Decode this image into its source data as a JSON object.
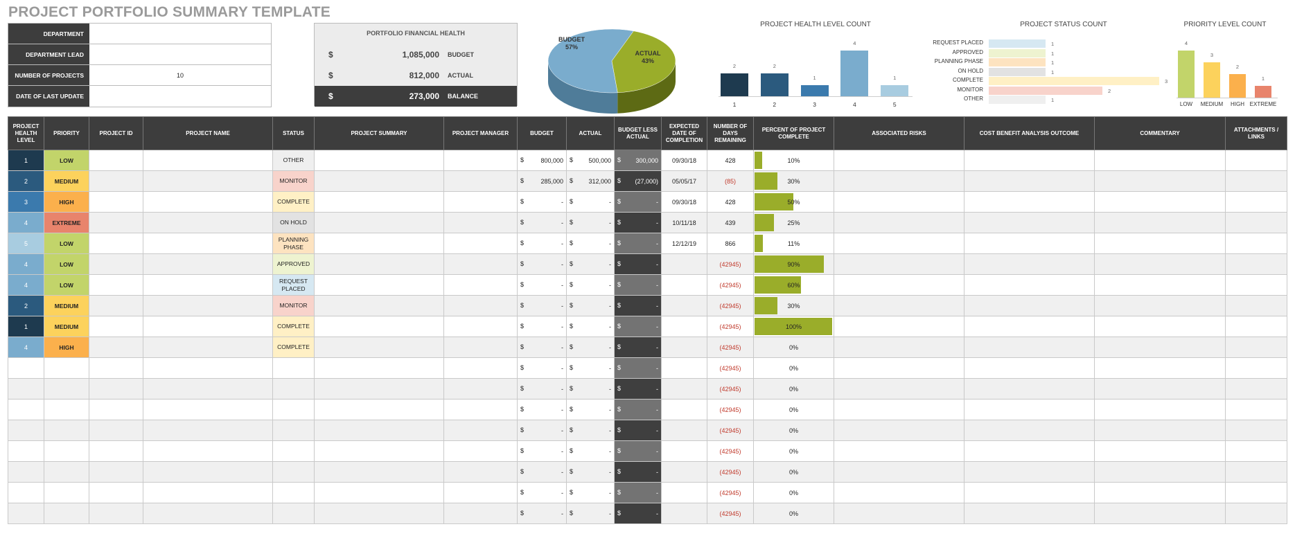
{
  "title": "PROJECT PORTFOLIO SUMMARY TEMPLATE",
  "info": [
    {
      "label": "DEPARTMENT",
      "value": ""
    },
    {
      "label": "DEPARTMENT LEAD",
      "value": ""
    },
    {
      "label": "NUMBER OF PROJECTS",
      "value": "10"
    },
    {
      "label": "DATE OF LAST UPDATE",
      "value": ""
    }
  ],
  "financial": {
    "title": "PORTFOLIO FINANCIAL HEALTH",
    "currency": "$",
    "rows": [
      {
        "value": "1,085,000",
        "label": "BUDGET"
      },
      {
        "value": "812,000",
        "label": "ACTUAL"
      },
      {
        "value": "273,000",
        "label": "BALANCE"
      }
    ]
  },
  "chart_data": [
    {
      "type": "pie",
      "slices": [
        {
          "label": "BUDGET",
          "value": 57,
          "text": "57%",
          "color": "#7aaccd"
        },
        {
          "label": "ACTUAL",
          "value": 43,
          "text": "43%",
          "color": "#9aad2a"
        }
      ]
    },
    {
      "type": "bar",
      "title": "PROJECT HEALTH LEVEL COUNT",
      "categories": [
        "1",
        "2",
        "3",
        "4",
        "5"
      ],
      "values": [
        2,
        2,
        1,
        4,
        1
      ],
      "colors": [
        "#1e3a4f",
        "#2b5a7e",
        "#3b7aad",
        "#7aaccd",
        "#a8cce0"
      ]
    },
    {
      "type": "bar",
      "orientation": "horizontal",
      "title": "PROJECT STATUS COUNT",
      "categories": [
        "REQUEST PLACED",
        "APPROVED",
        "PLANNING PHASE",
        "ON HOLD",
        "COMPLETE",
        "MONITOR",
        "OTHER"
      ],
      "values": [
        1,
        1,
        1,
        1,
        3,
        2,
        1
      ],
      "colors": [
        "#d6e8f2",
        "#eef3d0",
        "#fde3c0",
        "#e2e2e2",
        "#fff0c5",
        "#f8d3cb",
        "#efefef"
      ]
    },
    {
      "type": "bar",
      "title": "PRIORITY LEVEL COUNT",
      "categories": [
        "LOW",
        "MEDIUM",
        "HIGH",
        "EXTREME"
      ],
      "values": [
        4,
        3,
        2,
        1
      ],
      "colors": [
        "#c2d46a",
        "#fcd25c",
        "#fbb04c",
        "#e8846c"
      ]
    }
  ],
  "colors": {
    "health": {
      "1": "#1e3a4f",
      "2": "#2b5a7e",
      "3": "#3b7aad",
      "4": "#7aaccd",
      "5": "#a8cce0"
    },
    "priority": {
      "LOW": "#c2d46a",
      "MEDIUM": "#fcd25c",
      "HIGH": "#fbb04c",
      "EXTREME": "#e8846c"
    },
    "status": {
      "OTHER": "#efefef",
      "MONITOR": "#f8d3cb",
      "COMPLETE": "#fff0c5",
      "ON HOLD": "#e2e2e2",
      "PLANNING PHASE": "#fde3c0",
      "APPROVED": "#eef3d0",
      "REQUEST PLACED": "#d6e8f2"
    }
  },
  "table": {
    "headers": [
      "PROJECT HEALTH LEVEL",
      "PRIORITY",
      "PROJECT ID",
      "PROJECT NAME",
      "STATUS",
      "PROJECT SUMMARY",
      "PROJECT MANAGER",
      "BUDGET",
      "ACTUAL",
      "BUDGET LESS ACTUAL",
      "EXPECTED DATE OF COMPLETION",
      "NUMBER OF DAYS REMAINING",
      "PERCENT OF PROJECT COMPLETE",
      "ASSOCIATED RISKS",
      "COST BENEFIT ANALYSIS OUTCOME",
      "COMMENTARY",
      "ATTACHMENTS / LINKS"
    ],
    "rows": [
      {
        "health": "1",
        "priority": "LOW",
        "status": "OTHER",
        "budget": "800,000",
        "actual": "500,000",
        "diff": "300,000",
        "date": "09/30/18",
        "days": "428",
        "pct": 10
      },
      {
        "health": "2",
        "priority": "MEDIUM",
        "status": "MONITOR",
        "budget": "285,000",
        "actual": "312,000",
        "diff": "(27,000)",
        "date": "05/05/17",
        "days": "(85)",
        "pct": 30
      },
      {
        "health": "3",
        "priority": "HIGH",
        "status": "COMPLETE",
        "budget": "-",
        "actual": "-",
        "diff": "-",
        "date": "09/30/18",
        "days": "428",
        "pct": 50
      },
      {
        "health": "4",
        "priority": "EXTREME",
        "status": "ON HOLD",
        "budget": "-",
        "actual": "-",
        "diff": "-",
        "date": "10/11/18",
        "days": "439",
        "pct": 25
      },
      {
        "health": "5",
        "priority": "LOW",
        "status": "PLANNING PHASE",
        "budget": "-",
        "actual": "-",
        "diff": "-",
        "date": "12/12/19",
        "days": "866",
        "pct": 11
      },
      {
        "health": "4",
        "priority": "LOW",
        "status": "APPROVED",
        "budget": "-",
        "actual": "-",
        "diff": "-",
        "date": "",
        "days": "(42945)",
        "pct": 90
      },
      {
        "health": "4",
        "priority": "LOW",
        "status": "REQUEST PLACED",
        "budget": "-",
        "actual": "-",
        "diff": "-",
        "date": "",
        "days": "(42945)",
        "pct": 60
      },
      {
        "health": "2",
        "priority": "MEDIUM",
        "status": "MONITOR",
        "budget": "-",
        "actual": "-",
        "diff": "-",
        "date": "",
        "days": "(42945)",
        "pct": 30
      },
      {
        "health": "1",
        "priority": "MEDIUM",
        "status": "COMPLETE",
        "budget": "-",
        "actual": "-",
        "diff": "-",
        "date": "",
        "days": "(42945)",
        "pct": 100
      },
      {
        "health": "4",
        "priority": "HIGH",
        "status": "COMPLETE",
        "budget": "-",
        "actual": "-",
        "diff": "-",
        "date": "",
        "days": "(42945)",
        "pct": 0
      },
      {
        "health": "",
        "priority": "",
        "status": "",
        "budget": "-",
        "actual": "-",
        "diff": "-",
        "date": "",
        "days": "(42945)",
        "pct": 0
      },
      {
        "health": "",
        "priority": "",
        "status": "",
        "budget": "-",
        "actual": "-",
        "diff": "-",
        "date": "",
        "days": "(42945)",
        "pct": 0
      },
      {
        "health": "",
        "priority": "",
        "status": "",
        "budget": "-",
        "actual": "-",
        "diff": "-",
        "date": "",
        "days": "(42945)",
        "pct": 0
      },
      {
        "health": "",
        "priority": "",
        "status": "",
        "budget": "-",
        "actual": "-",
        "diff": "-",
        "date": "",
        "days": "(42945)",
        "pct": 0
      },
      {
        "health": "",
        "priority": "",
        "status": "",
        "budget": "-",
        "actual": "-",
        "diff": "-",
        "date": "",
        "days": "(42945)",
        "pct": 0
      },
      {
        "health": "",
        "priority": "",
        "status": "",
        "budget": "-",
        "actual": "-",
        "diff": "-",
        "date": "",
        "days": "(42945)",
        "pct": 0
      },
      {
        "health": "",
        "priority": "",
        "status": "",
        "budget": "-",
        "actual": "-",
        "diff": "-",
        "date": "",
        "days": "(42945)",
        "pct": 0
      },
      {
        "health": "",
        "priority": "",
        "status": "",
        "budget": "-",
        "actual": "-",
        "diff": "-",
        "date": "",
        "days": "(42945)",
        "pct": 0
      }
    ]
  }
}
